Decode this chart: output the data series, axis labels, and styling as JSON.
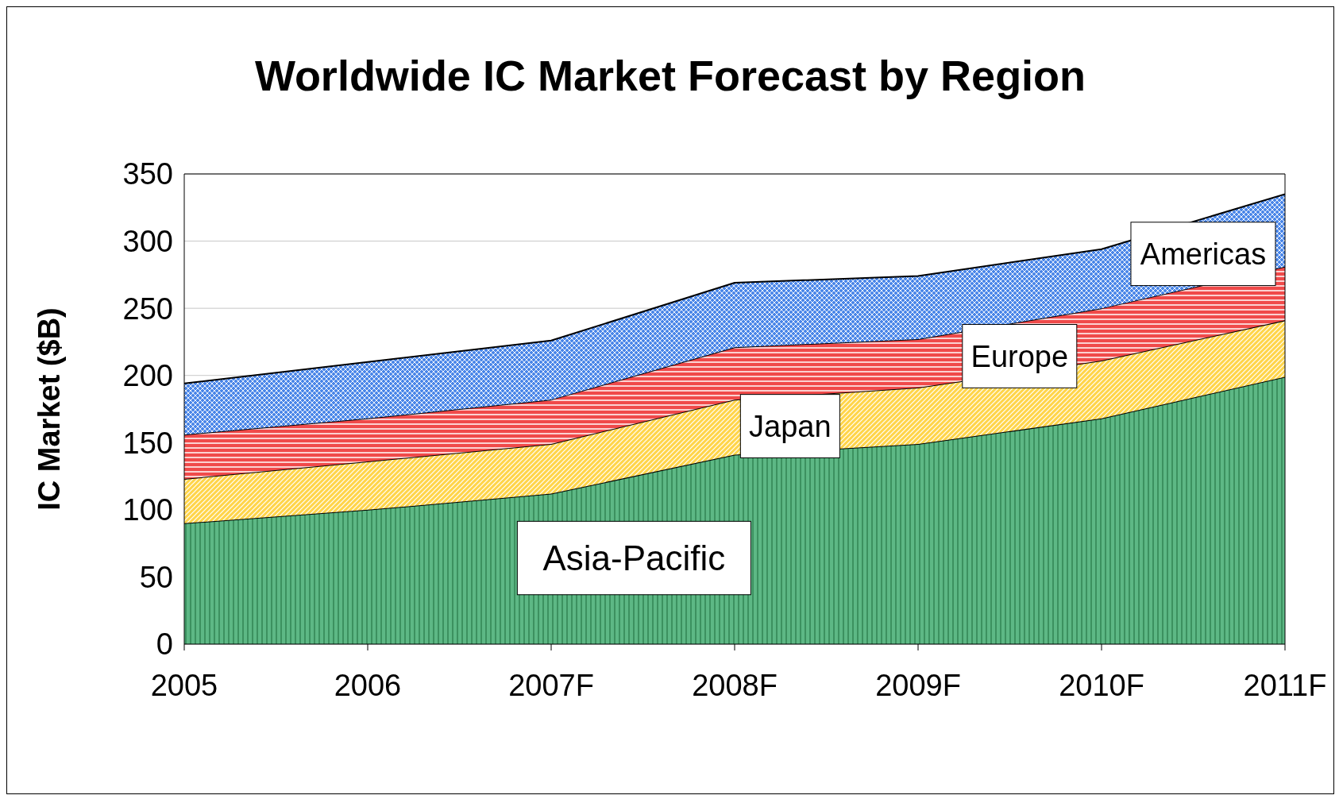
{
  "chart_data": {
    "type": "area",
    "title": "Worldwide IC Market Forecast by Region",
    "ylabel": "IC Market ($B)",
    "categories": [
      "2005",
      "2006",
      "2007F",
      "2008F",
      "2009F",
      "2010F",
      "2011F"
    ],
    "stacked": true,
    "ylim": [
      0,
      350
    ],
    "yticks": [
      0,
      50,
      100,
      150,
      200,
      250,
      300,
      350
    ],
    "grid": "y",
    "legend": false,
    "series": [
      {
        "name": "Asia-Pacific",
        "color": "#5db885",
        "values": [
          90,
          100,
          112,
          141,
          149,
          168,
          199
        ]
      },
      {
        "name": "Japan",
        "color": "#ffd54a",
        "values": [
          33,
          36,
          37,
          41,
          42,
          43,
          42
        ]
      },
      {
        "name": "Europe",
        "color": "#f04a4a",
        "values": [
          33,
          32,
          33,
          39,
          36,
          39,
          40
        ]
      },
      {
        "name": "Americas",
        "color": "#4a86e8",
        "values": [
          38,
          42,
          44,
          48,
          47,
          44,
          54
        ]
      }
    ]
  }
}
